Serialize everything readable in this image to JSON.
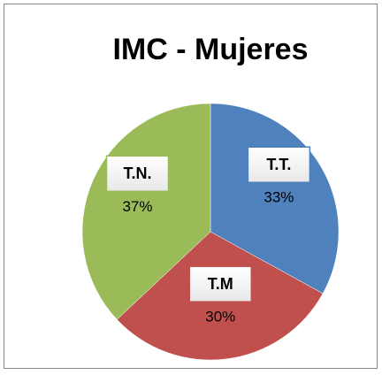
{
  "chart_data": {
    "type": "pie",
    "title": "IMC - Mujeres",
    "categories": [
      "T.T.",
      "T.M",
      "T.N."
    ],
    "values": [
      33,
      30,
      37
    ],
    "value_labels": [
      "33%",
      "30%",
      "37%"
    ],
    "colors": [
      "#4f81bd",
      "#c0504d",
      "#9bbb59"
    ]
  }
}
